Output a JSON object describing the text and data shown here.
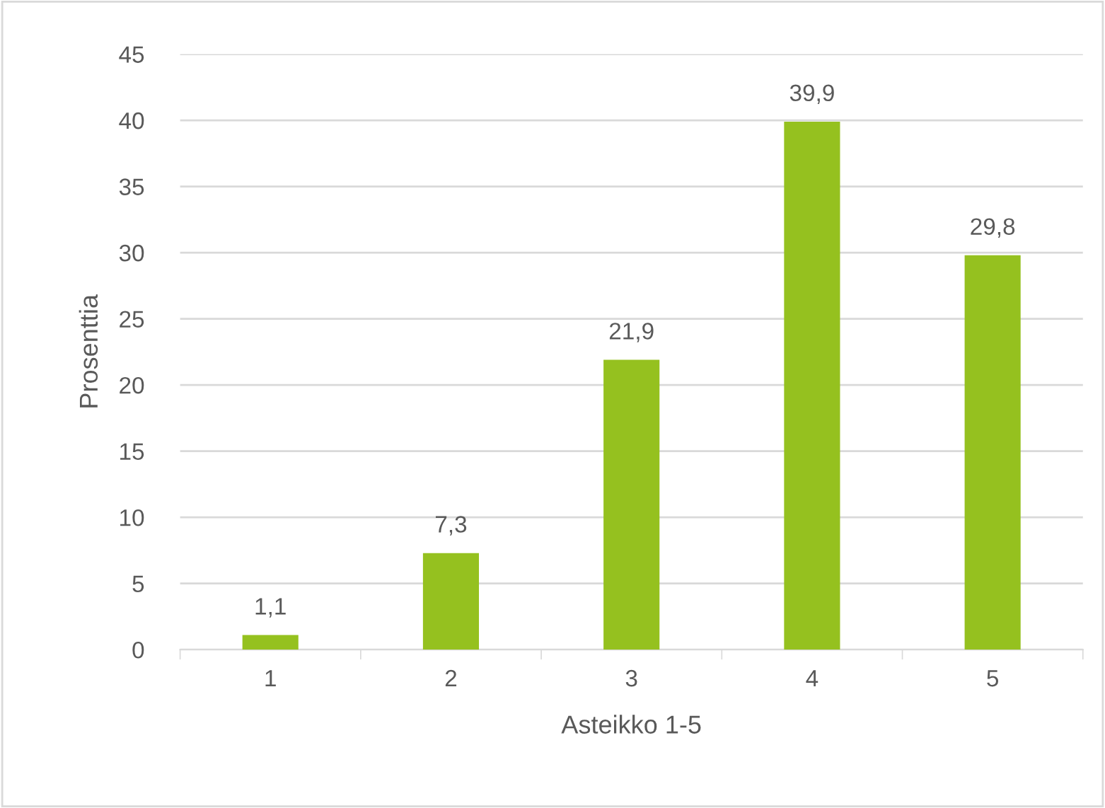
{
  "chart_data": {
    "type": "bar",
    "xlabel": "Asteikko 1-5",
    "ylabel": "Prosenttia",
    "categories": [
      "1",
      "2",
      "3",
      "4",
      "5"
    ],
    "values": [
      1.1,
      7.3,
      21.9,
      39.9,
      29.8
    ],
    "value_labels": [
      "1,1",
      "7,3",
      "21,9",
      "39,9",
      "29,8"
    ],
    "color": "#95c11f",
    "ylim": [
      0,
      45
    ],
    "yticks": [
      0,
      5,
      10,
      15,
      20,
      25,
      30,
      35,
      40,
      45
    ],
    "grid": "y",
    "legend": false
  }
}
